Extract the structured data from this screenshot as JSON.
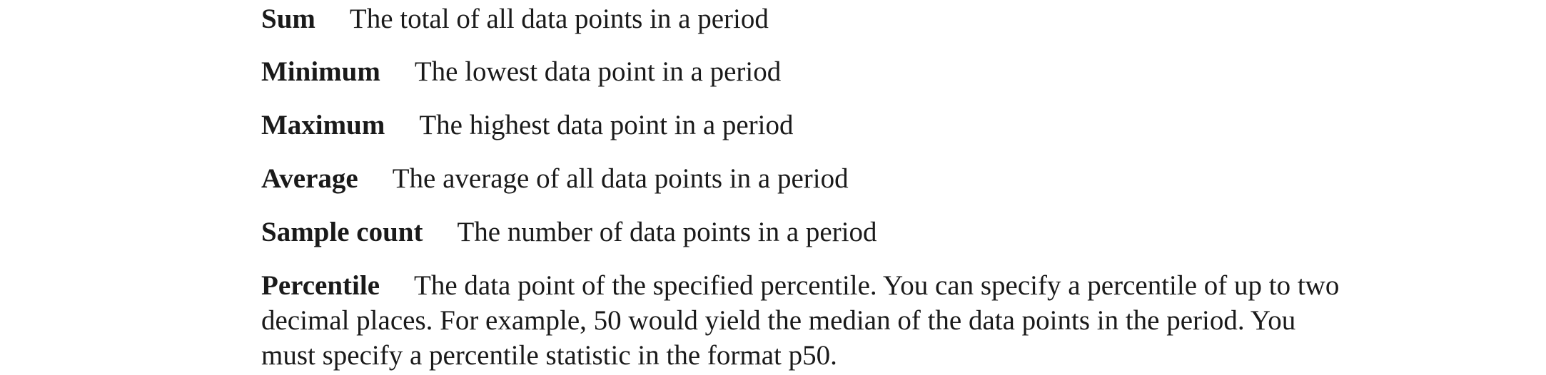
{
  "statistics": [
    {
      "term": "Sum",
      "description": "The total of all data points in a period"
    },
    {
      "term": "Minimum",
      "description": "The lowest data point in a period"
    },
    {
      "term": "Maximum",
      "description": "The highest data point in a period"
    },
    {
      "term": "Average",
      "description": "The average of all data points in a period"
    },
    {
      "term": "Sample count",
      "description": "The number of data points in a period"
    },
    {
      "term": "Percentile",
      "description": "The data point of the specified percentile. You can specify a percentile of up to two decimal places. For example, 50 would yield the median of the data points in the period. You must specify a percentile statistic in the format p50."
    }
  ]
}
